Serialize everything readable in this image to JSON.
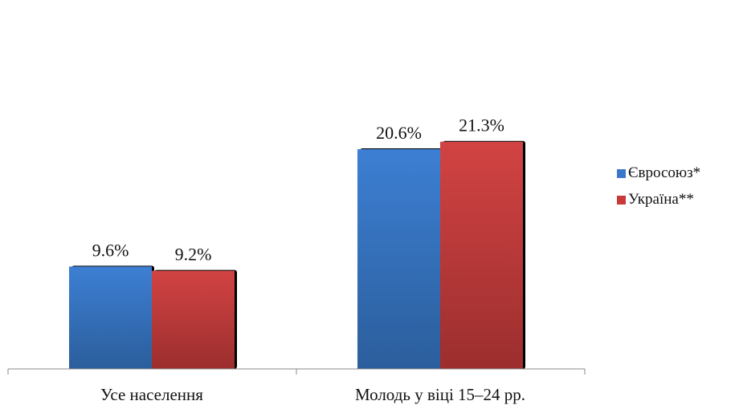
{
  "chart_data": {
    "type": "bar",
    "categories": [
      "Усе населення",
      "Молодь у віці 15–24 рр."
    ],
    "series": [
      {
        "name": "Євросоюз*",
        "values": [
          9.6,
          20.6
        ],
        "labels": [
          "9.6%",
          "20.6%"
        ],
        "color": "#3a78c9"
      },
      {
        "name": "Україна**",
        "values": [
          9.2,
          21.3
        ],
        "labels": [
          "9.2%",
          "21.3%"
        ],
        "color": "#c93a3a"
      }
    ],
    "ylim": [
      0,
      25
    ],
    "grid": false,
    "legend_position": "right",
    "title": "",
    "xlabel": "",
    "ylabel": ""
  }
}
